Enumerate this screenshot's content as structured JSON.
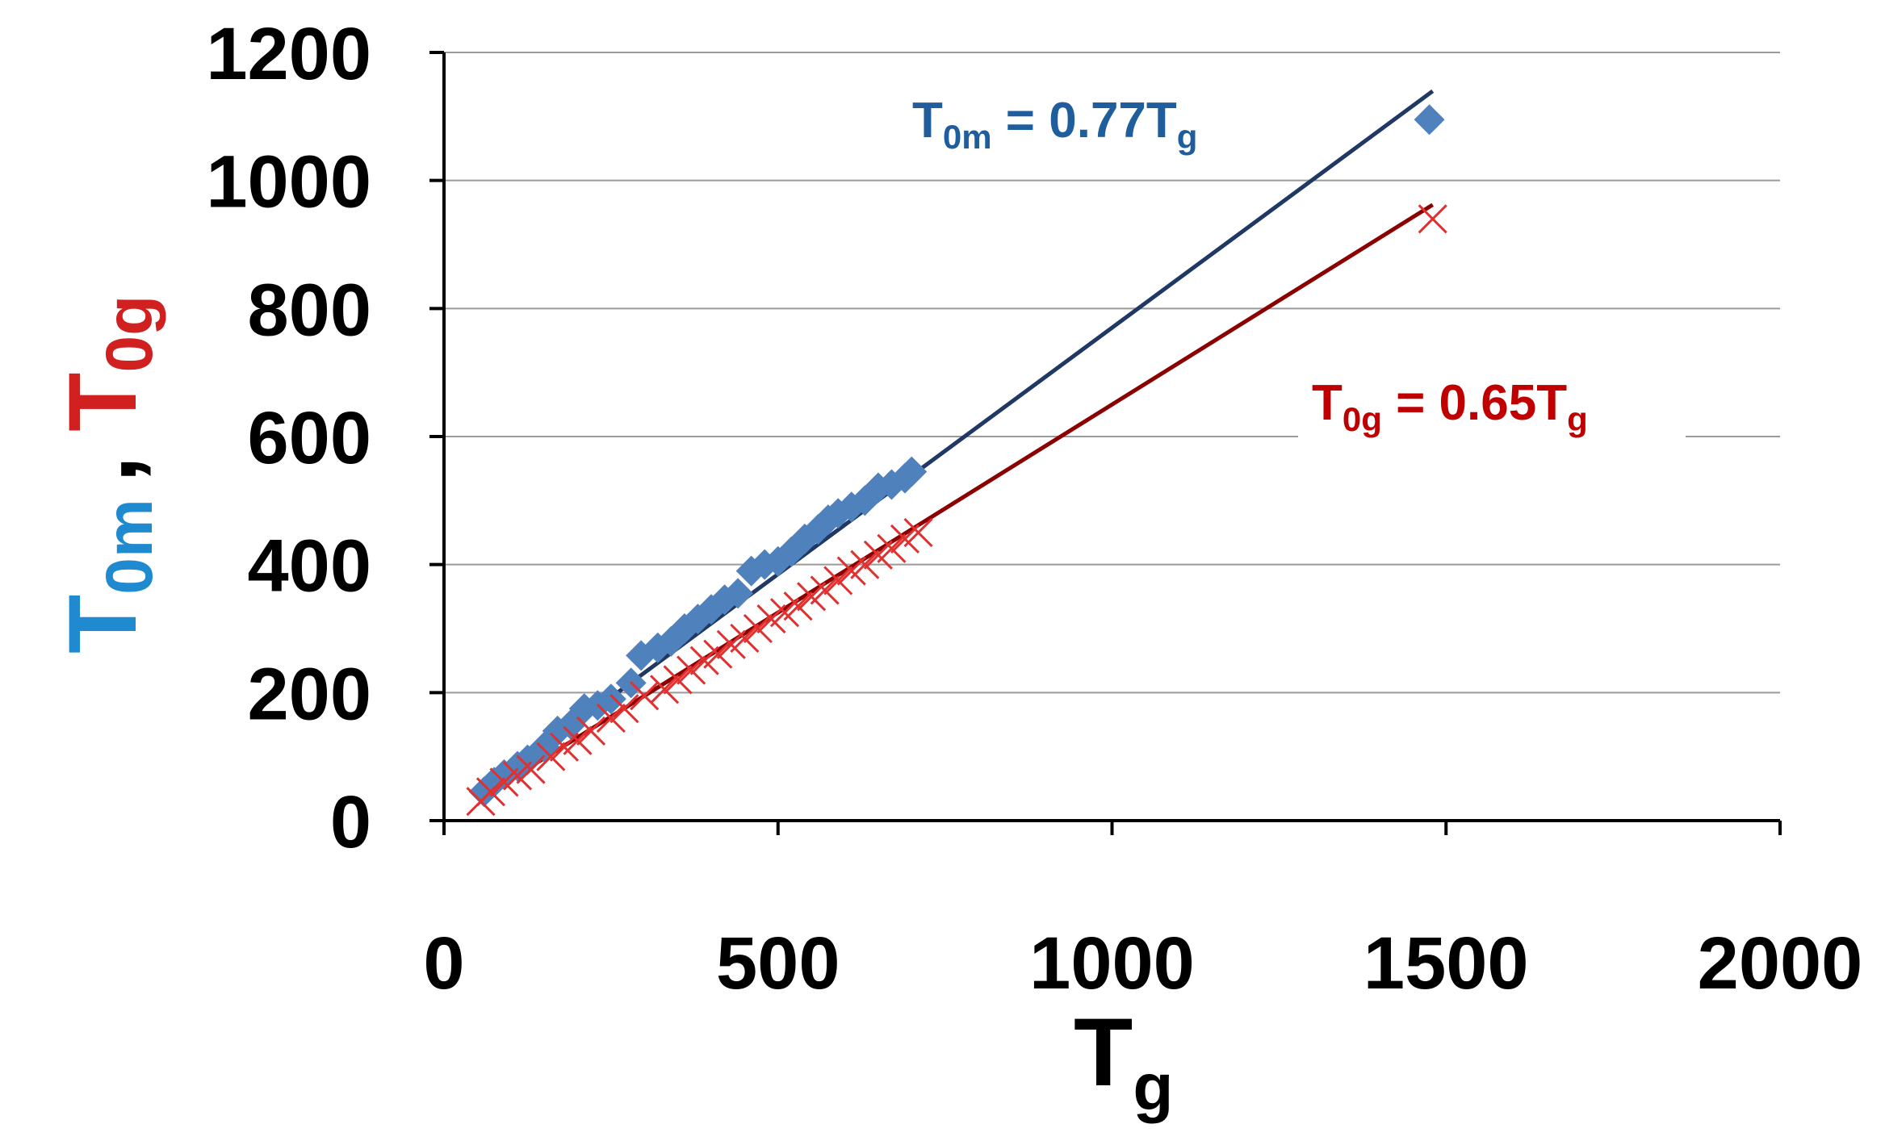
{
  "chart_data": {
    "type": "scatter",
    "x_axis": {
      "range": [
        0,
        2000
      ],
      "ticks": [
        "0",
        "500",
        "1000",
        "1500",
        "2000"
      ],
      "tick_values": [
        0,
        500,
        1000,
        1500,
        2000
      ]
    },
    "y_axis": {
      "range": [
        0,
        1200
      ],
      "ticks": [
        "0",
        "200",
        "400",
        "600",
        "800",
        "1000",
        "1200"
      ],
      "tick_values": [
        0,
        200,
        400,
        600,
        800,
        1000,
        1200
      ]
    },
    "xlabel": {
      "main": "T",
      "sub": "g"
    },
    "ylabel": {
      "part1_main": "T",
      "part1_sub": "0m",
      "separator": ",",
      "part2_main": "T",
      "part2_sub": "0g"
    },
    "gridlines": "horizontal",
    "colors": {
      "t0m": "#4f81bd",
      "t0g": "#e03030",
      "fit_t0m": "#1f3864",
      "fit_t0g": "#8b0000",
      "label_t0m": "#1f5d9c",
      "label_t0g": "#c00000",
      "ylabel_t0m": "#1f8ad0",
      "ylabel_t0g": "#d02020"
    },
    "series": [
      {
        "name": "T0m",
        "marker": "diamond",
        "points": [
          [
            60,
            45
          ],
          [
            75,
            60
          ],
          [
            90,
            72
          ],
          [
            110,
            85
          ],
          [
            125,
            95
          ],
          [
            150,
            115
          ],
          [
            170,
            140
          ],
          [
            190,
            150
          ],
          [
            210,
            175
          ],
          [
            230,
            180
          ],
          [
            250,
            190
          ],
          [
            280,
            215
          ],
          [
            295,
            258
          ],
          [
            320,
            270
          ],
          [
            340,
            280
          ],
          [
            360,
            300
          ],
          [
            380,
            315
          ],
          [
            400,
            330
          ],
          [
            420,
            345
          ],
          [
            440,
            355
          ],
          [
            460,
            390
          ],
          [
            480,
            400
          ],
          [
            500,
            405
          ],
          [
            520,
            420
          ],
          [
            540,
            440
          ],
          [
            560,
            455
          ],
          [
            575,
            470
          ],
          [
            590,
            480
          ],
          [
            610,
            490
          ],
          [
            630,
            500
          ],
          [
            650,
            520
          ],
          [
            670,
            525
          ],
          [
            690,
            535
          ],
          [
            700,
            545
          ],
          [
            1475,
            1095
          ]
        ]
      },
      {
        "name": "T0g",
        "marker": "x",
        "points": [
          [
            55,
            30
          ],
          [
            70,
            45
          ],
          [
            90,
            60
          ],
          [
            110,
            70
          ],
          [
            130,
            80
          ],
          [
            160,
            100
          ],
          [
            180,
            115
          ],
          [
            200,
            125
          ],
          [
            220,
            140
          ],
          [
            250,
            160
          ],
          [
            270,
            175
          ],
          [
            300,
            195
          ],
          [
            330,
            205
          ],
          [
            350,
            220
          ],
          [
            370,
            235
          ],
          [
            390,
            250
          ],
          [
            410,
            260
          ],
          [
            430,
            275
          ],
          [
            450,
            285
          ],
          [
            470,
            300
          ],
          [
            490,
            315
          ],
          [
            510,
            325
          ],
          [
            530,
            335
          ],
          [
            550,
            350
          ],
          [
            570,
            360
          ],
          [
            590,
            375
          ],
          [
            610,
            390
          ],
          [
            630,
            400
          ],
          [
            650,
            415
          ],
          [
            670,
            425
          ],
          [
            690,
            440
          ],
          [
            710,
            450
          ],
          [
            1480,
            940
          ]
        ]
      }
    ],
    "fits": [
      {
        "name": "T0m fit",
        "equation": {
          "lhs_main": "T",
          "lhs_sub": "0m",
          "rhs_main": " = 0.77T",
          "rhs_sub": "g"
        },
        "x_range": [
          60,
          1480
        ],
        "slope": 0.77
      },
      {
        "name": "T0g fit",
        "equation": {
          "lhs_main": "T",
          "lhs_sub": "0g",
          "rhs_main": " = 0.65T",
          "rhs_sub": "g"
        },
        "x_range": [
          60,
          1480
        ],
        "slope": 0.65
      }
    ]
  }
}
